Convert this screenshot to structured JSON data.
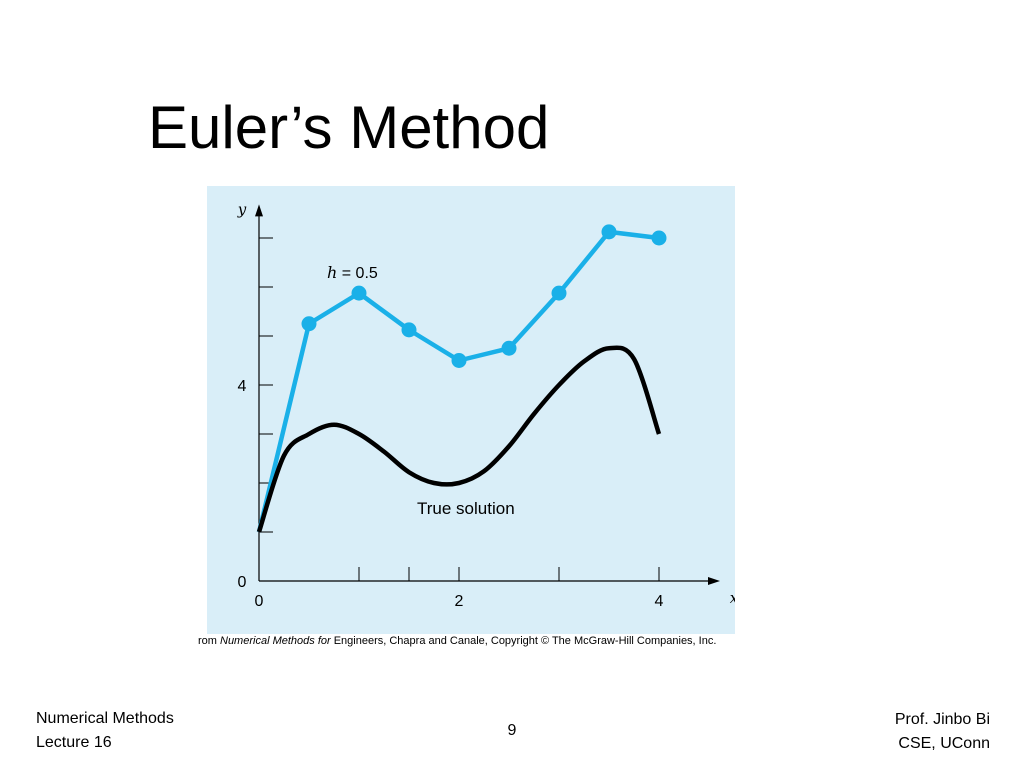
{
  "slide": {
    "title": "Euler’s Method"
  },
  "credit": {
    "prefix": "rom ",
    "book": "Numerical Methods for",
    "rest": " Engineers, Chapra and Canale, Copyright © The McGraw-Hill Companies, Inc."
  },
  "footer": {
    "left_line1": "Numerical Methods",
    "left_line2": "Lecture 16",
    "page_number": "9",
    "right_line1": "Prof. Jinbo Bi",
    "right_line2": "CSE, UConn"
  },
  "chart_data": {
    "type": "line",
    "xlabel": "x",
    "ylabel": "y",
    "xlim": [
      0,
      4.45
    ],
    "ylim": [
      0,
      7.4
    ],
    "x_ticks": [
      {
        "value": 0,
        "label": "0"
      },
      {
        "value": 1,
        "label": ""
      },
      {
        "value": 1.5,
        "label": ""
      },
      {
        "value": 2,
        "label": "2"
      },
      {
        "value": 3,
        "label": ""
      },
      {
        "value": 4,
        "label": "4"
      }
    ],
    "y_ticks": [
      {
        "value": 0,
        "label": "0"
      },
      {
        "value": 1,
        "label": ""
      },
      {
        "value": 2,
        "label": ""
      },
      {
        "value": 3,
        "label": ""
      },
      {
        "value": 4,
        "label": "4"
      },
      {
        "value": 5,
        "label": ""
      },
      {
        "value": 6,
        "label": ""
      },
      {
        "value": 7,
        "label": ""
      }
    ],
    "series": [
      {
        "name": "h = 0.5",
        "color": "#1ab0e8",
        "markers": true,
        "x": [
          0,
          0.5,
          1.0,
          1.5,
          2.0,
          2.5,
          3.0,
          3.5,
          4.0
        ],
        "y": [
          1.0,
          5.25,
          5.875,
          5.125,
          4.5,
          4.75,
          5.875,
          7.125,
          7.0
        ]
      },
      {
        "name": "True solution",
        "color": "#000000",
        "markers": false,
        "x": [
          0,
          0.25,
          0.5,
          0.75,
          1.0,
          1.25,
          1.5,
          1.75,
          2.0,
          2.25,
          2.5,
          2.75,
          3.0,
          3.25,
          3.5,
          3.75,
          4.0
        ],
        "y": [
          1.0,
          2.56,
          3.0,
          3.19,
          3.0,
          2.64,
          2.22,
          2.0,
          2.0,
          2.24,
          2.75,
          3.41,
          4.0,
          4.48,
          4.75,
          4.53,
          3.0
        ]
      }
    ]
  }
}
